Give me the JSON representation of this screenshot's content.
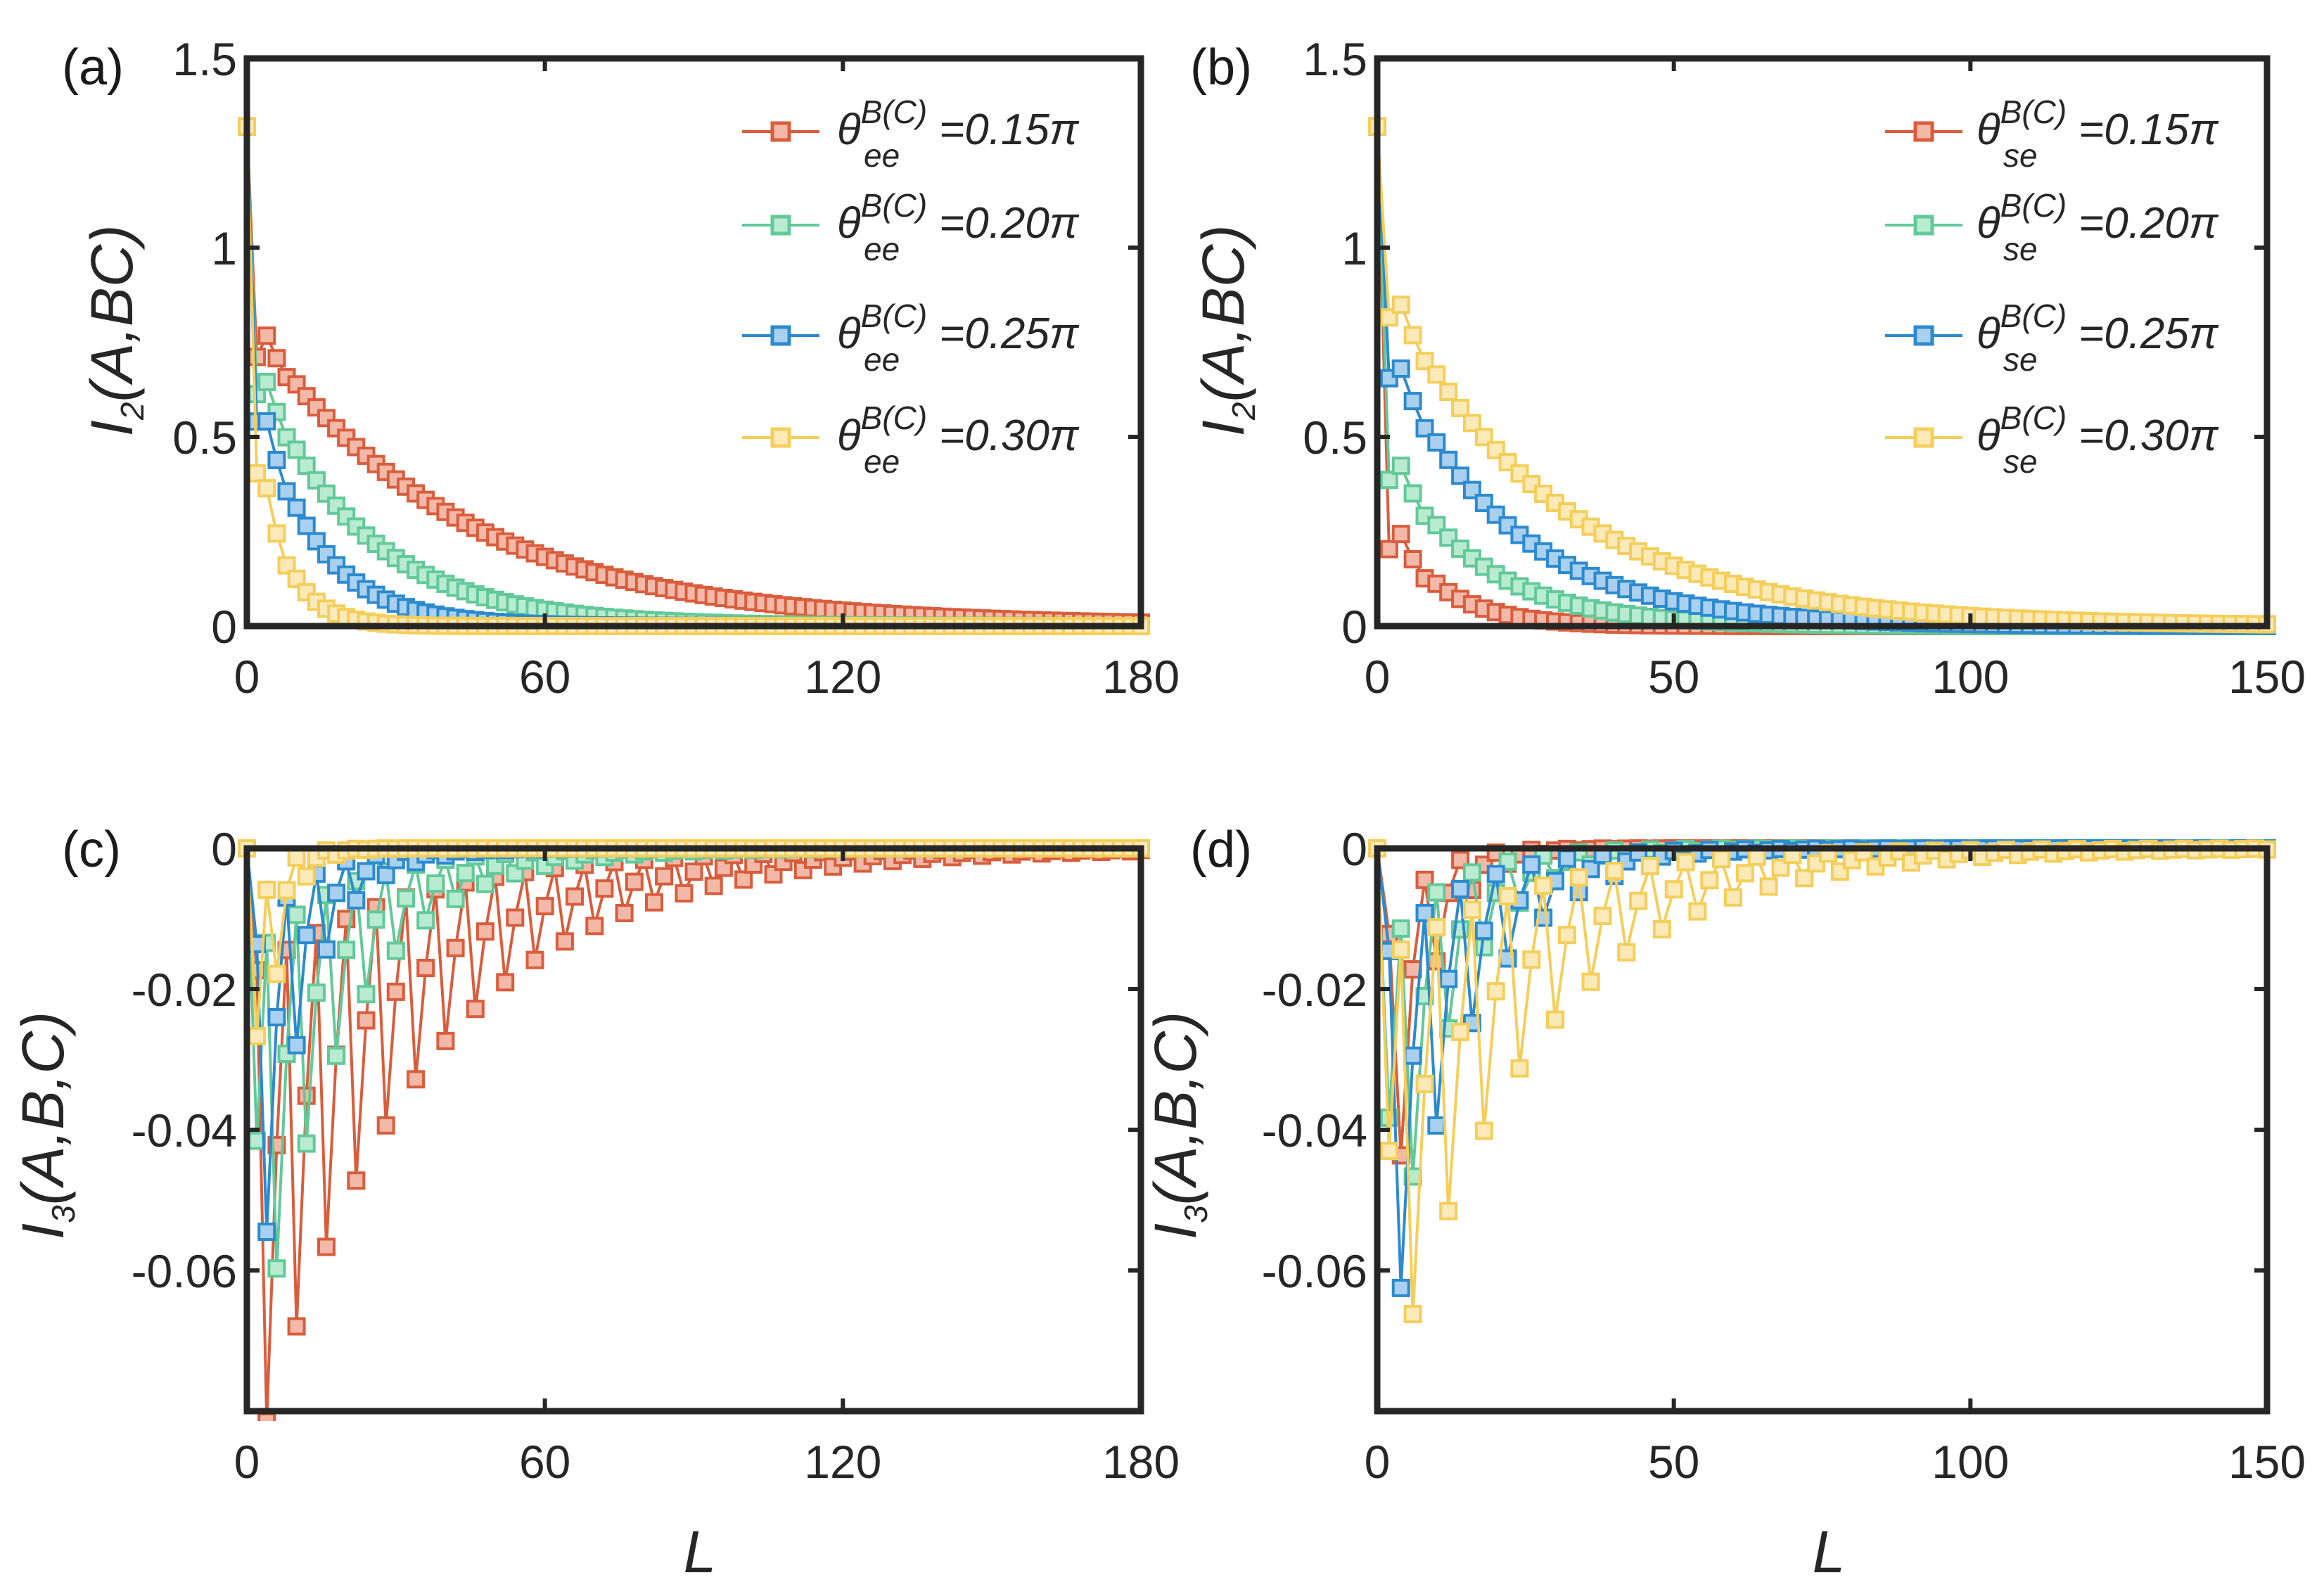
{
  "colors": {
    "red": "#D95D3C",
    "green": "#62C998",
    "blue": "#2C8ACF",
    "yellow": "#F5CE5A",
    "axis": "#262626"
  },
  "chart_data": [
    {
      "panel": "(a)",
      "type": "line",
      "markers": "square",
      "xlim": [
        0,
        180
      ],
      "ylim": [
        0,
        1.5
      ],
      "xticks": [
        "0",
        "60",
        "120",
        "180"
      ],
      "yticks": [
        "0",
        "0.5",
        "1",
        "1.5"
      ],
      "xlabel": "",
      "ylabel": "I2(A,BC)",
      "legend_position": "top-right",
      "legend": [
        "θ_ee^{B(C)}=0.15π",
        "θ_ee^{B(C)}=0.20π",
        "θ_ee^{B(C)}=0.25π",
        "θ_ee^{B(C)}=0.30π"
      ],
      "series": [
        {
          "name": "θee 0.15π",
          "color": "red",
          "model": "decay",
          "y0": 1.32,
          "a": 0.82,
          "tau": 40,
          "xmax": 180,
          "step": 2
        },
        {
          "name": "θee 0.20π",
          "color": "green",
          "model": "decay",
          "y0": 1.32,
          "a": 0.75,
          "tau": 21,
          "xmax": 180,
          "step": 2
        },
        {
          "name": "θee 0.25π",
          "color": "blue",
          "model": "decay",
          "y0": 1.32,
          "a": 0.72,
          "tau": 12,
          "xmax": 180,
          "step": 2
        },
        {
          "name": "θee 0.30π",
          "color": "yellow",
          "model": "decay",
          "y0": 1.32,
          "a": 0.66,
          "tau": 6,
          "xmax": 180,
          "step": 2
        }
      ]
    },
    {
      "panel": "(b)",
      "type": "line",
      "markers": "square",
      "xlim": [
        0,
        150
      ],
      "ylim": [
        0,
        1.5
      ],
      "xticks": [
        "0",
        "50",
        "100",
        "150"
      ],
      "yticks": [
        "0",
        "0.5",
        "1",
        "1.5"
      ],
      "xlabel": "",
      "ylabel": "I2(A,BC)",
      "legend_position": "top-right",
      "legend": [
        "θ_se^{B(C)}=0.15π",
        "θ_se^{B(C)}=0.20π",
        "θ_se^{B(C)}=0.25π",
        "θ_se^{B(C)}=0.30π"
      ],
      "series": [
        {
          "name": "θse 0.15π",
          "color": "red",
          "model": "decay",
          "y0": 1.32,
          "a": 0.34,
          "tau": 9,
          "xmax": 150,
          "step": 2
        },
        {
          "name": "θse 0.20π",
          "color": "green",
          "model": "decay",
          "y0": 1.32,
          "a": 0.52,
          "tau": 15,
          "xmax": 150,
          "step": 2
        },
        {
          "name": "θse 0.25π",
          "color": "blue",
          "model": "decay",
          "y0": 1.32,
          "a": 0.8,
          "tau": 20,
          "xmax": 150,
          "step": 2
        },
        {
          "name": "θse 0.30π",
          "color": "yellow",
          "model": "decay",
          "y0": 1.32,
          "a": 0.95,
          "tau": 28,
          "xmax": 150,
          "step": 2
        }
      ]
    },
    {
      "panel": "(c)",
      "type": "line",
      "markers": "square",
      "xlim": [
        0,
        180
      ],
      "ylim": [
        -0.08,
        0
      ],
      "xticks": [
        "0",
        "60",
        "120",
        "180"
      ],
      "yticks": [
        "-0.06",
        "-0.04",
        "-0.02",
        "0"
      ],
      "xlabel": "L",
      "ylabel": "I3(A,B,C)",
      "series": [
        {
          "name": "θee 0.15π",
          "color": "red",
          "model": "osc",
          "amp": 0.092,
          "tau": 33,
          "shift": 1,
          "xmax": 180,
          "step": 2
        },
        {
          "name": "θee 0.20π",
          "color": "green",
          "model": "osc",
          "amp": 0.085,
          "tau": 17,
          "shift": 0,
          "xmax": 180,
          "step": 2
        },
        {
          "name": "θee 0.25π",
          "color": "blue",
          "model": "osc",
          "amp": 0.085,
          "tau": 9,
          "shift": 1,
          "xmax": 180,
          "step": 2
        },
        {
          "name": "θee 0.30π",
          "color": "yellow",
          "model": "osc",
          "amp": 0.08,
          "tau": 4,
          "shift": 0,
          "xmax": 180,
          "step": 2
        }
      ]
    },
    {
      "panel": "(d)",
      "type": "line",
      "markers": "square",
      "xlim": [
        0,
        150
      ],
      "ylim": [
        -0.08,
        0
      ],
      "xticks": [
        "0",
        "50",
        "100",
        "150"
      ],
      "yticks": [
        "-0.06",
        "-0.04",
        "-0.02",
        "0"
      ],
      "xlabel": "L",
      "ylabel": "I3(A,B,C)",
      "series": [
        {
          "name": "θse 0.15π",
          "color": "red",
          "model": "osc",
          "amp": 0.085,
          "tau": 6,
          "shift": 1,
          "xmax": 150,
          "step": 2
        },
        {
          "name": "θse 0.20π",
          "color": "green",
          "model": "osc",
          "amp": 0.085,
          "tau": 10,
          "shift": 0,
          "xmax": 150,
          "step": 2
        },
        {
          "name": "θse 0.25π",
          "color": "blue",
          "model": "osc",
          "amp": 0.085,
          "tau": 13,
          "shift": 1,
          "xmax": 150,
          "step": 2
        },
        {
          "name": "θse 0.30π",
          "color": "yellow",
          "model": "osc",
          "amp": 0.085,
          "tau": 24,
          "shift": 0,
          "xmax": 150,
          "step": 2
        }
      ]
    }
  ],
  "panels": {
    "a": {
      "label": "(a)",
      "ylabel": {
        "main": "I",
        "sub": "2",
        "rest": "(A,BC)"
      },
      "legend": [
        {
          "sym": "θ",
          "sup": "B(C)",
          "sub": "ee",
          "value": "=0.15π"
        },
        {
          "sym": "θ",
          "sup": "B(C)",
          "sub": "ee",
          "value": "=0.20π"
        },
        {
          "sym": "θ",
          "sup": "B(C)",
          "sub": "ee",
          "value": "=0.25π"
        },
        {
          "sym": "θ",
          "sup": "B(C)",
          "sub": "ee",
          "value": "=0.30π"
        }
      ]
    },
    "b": {
      "label": "(b)",
      "ylabel": {
        "main": "I",
        "sub": "2",
        "rest": "(A,BC)"
      },
      "legend": [
        {
          "sym": "θ",
          "sup": "B(C)",
          "sub": "se",
          "value": "=0.15π"
        },
        {
          "sym": "θ",
          "sup": "B(C)",
          "sub": "se",
          "value": "=0.20π"
        },
        {
          "sym": "θ",
          "sup": "B(C)",
          "sub": "se",
          "value": "=0.25π"
        },
        {
          "sym": "θ",
          "sup": "B(C)",
          "sub": "se",
          "value": "=0.30π"
        }
      ]
    },
    "c": {
      "label": "(c)",
      "ylabel": {
        "main": "I",
        "sub": "3",
        "rest": "(A,B,C)"
      },
      "xlabel": "L"
    },
    "d": {
      "label": "(d)",
      "ylabel": {
        "main": "I",
        "sub": "3",
        "rest": "(A,B,C)"
      },
      "xlabel": "L"
    }
  }
}
